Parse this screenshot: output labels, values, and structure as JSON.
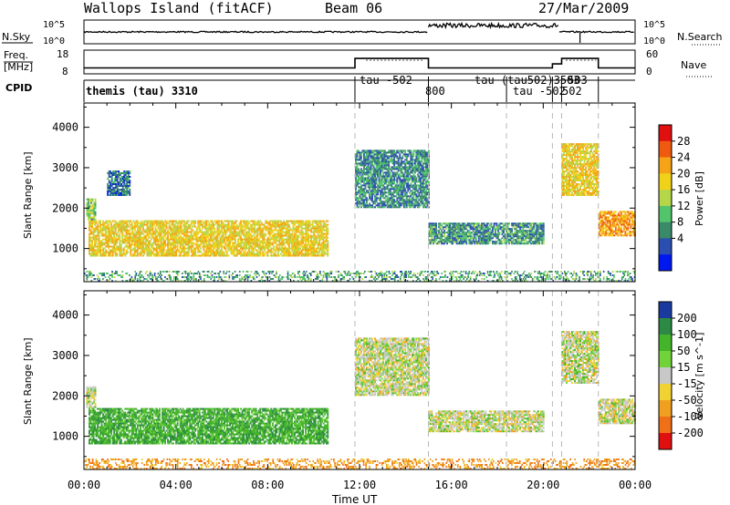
{
  "header": {
    "station": "Wallops Island (fitACF)",
    "beam": "Beam 06",
    "date": "27/Mar/2009"
  },
  "sky_noise_strip": {
    "left_label": "N.Sky",
    "right_label": "N.Search",
    "ticks": [
      "10^5",
      "10^0"
    ],
    "level_segments": [
      {
        "from_hour": 0,
        "to_hour": 15,
        "level": "low"
      },
      {
        "from_hour": 15,
        "to_hour": 20.7,
        "level": "high"
      },
      {
        "from_hour": 20.7,
        "to_hour": 24,
        "level": "low"
      }
    ]
  },
  "freq_strip": {
    "left_label_line1": "Freq.",
    "left_label_line2": "[MHz]",
    "right_label": "Nave",
    "left_ticks": [
      "18",
      "8"
    ],
    "right_ticks": [
      "60",
      "0"
    ],
    "steps": [
      {
        "from_hour": 0,
        "to_hour": 11.8,
        "freq_mhz": 10.5
      },
      {
        "from_hour": 11.8,
        "to_hour": 15.0,
        "freq_mhz": 14.5
      },
      {
        "from_hour": 15.0,
        "to_hour": 20.4,
        "freq_mhz": 10.5
      },
      {
        "from_hour": 20.4,
        "to_hour": 20.8,
        "freq_mhz": 12.2
      },
      {
        "from_hour": 20.8,
        "to_hour": 22.4,
        "freq_mhz": 14.5
      },
      {
        "from_hour": 22.4,
        "to_hour": 24,
        "freq_mhz": 10.5
      }
    ]
  },
  "cpid_strip": {
    "label": "CPID",
    "programs": [
      {
        "hour": 0,
        "label": "themis (tau) 3310"
      },
      {
        "hour": 12.1,
        "label": "tau -502"
      },
      {
        "hour": 15.0,
        "label": "800"
      },
      {
        "hour": 18.4,
        "label": "tau (tau502)3503"
      },
      {
        "hour": 19.9,
        "label": "tau -502"
      },
      {
        "hour": 21.3,
        "label": "503"
      },
      {
        "hour": 21.4,
        "label": "502"
      }
    ],
    "changes_hours": [
      11.8,
      15.0,
      18.4,
      20.4,
      20.8,
      22.4
    ]
  },
  "xaxis": {
    "label": "Time UT",
    "tick_labels": [
      "00:00",
      "04:00",
      "08:00",
      "12:00",
      "16:00",
      "20:00",
      "00:00"
    ]
  },
  "chart_data": [
    {
      "type": "heatmap",
      "quantity": "Power",
      "ylabel": "Slant Range [km]",
      "colorbar_label": "Power [dB]",
      "colorbar_ticks": [
        4,
        8,
        12,
        16,
        20,
        24,
        28
      ],
      "colorbar_colors": [
        "#0018f0",
        "#2a4fb0",
        "#3a8a6a",
        "#53c46b",
        "#b6d64a",
        "#f0d21a",
        "#f6a417",
        "#f05a10",
        "#e01010"
      ],
      "xlim_hours": [
        0,
        24
      ],
      "ylim_km": [
        180,
        4600
      ],
      "y_ticks": [
        1000,
        2000,
        3000,
        4000
      ],
      "dashed_markers_hours": [
        11.8,
        15.0,
        18.4,
        20.4,
        20.8,
        22.4
      ],
      "echo_regions": [
        {
          "start_hour": 0.1,
          "end_hour": 0.5,
          "range_km": [
            1700,
            2200
          ],
          "power_db": 14
        },
        {
          "start_hour": 0.2,
          "end_hour": 10.6,
          "range_km": [
            800,
            1700
          ],
          "power_db": 20
        },
        {
          "start_hour": 1.0,
          "end_hour": 2.0,
          "range_km": [
            2300,
            2900
          ],
          "power_db": 6
        },
        {
          "start_hour": 11.8,
          "end_hour": 15.0,
          "range_km": [
            2000,
            3400
          ],
          "power_db": 8
        },
        {
          "start_hour": 15.0,
          "end_hour": 20.0,
          "range_km": [
            1100,
            1600
          ],
          "power_db": 9
        },
        {
          "start_hour": 20.8,
          "end_hour": 22.4,
          "range_km": [
            2300,
            3600
          ],
          "power_db": 20
        },
        {
          "start_hour": 22.4,
          "end_hour": 24.0,
          "range_km": [
            1300,
            1900
          ],
          "power_db": 24
        },
        {
          "start_hour": 0.0,
          "end_hour": 24.0,
          "range_km": [
            180,
            450
          ],
          "power_db": 10
        }
      ]
    },
    {
      "type": "heatmap",
      "quantity": "Velocity",
      "ylabel": "Slant Range [km]",
      "colorbar_label": "Velocity [m s^-1]",
      "colorbar_ticks": [
        200,
        100,
        50,
        15,
        -15,
        -50,
        -100,
        -200
      ],
      "colorbar_colors": [
        "#1a3aa0",
        "#2c8a44",
        "#44b42a",
        "#72d23a",
        "#c8c8c8",
        "#f0d232",
        "#f0a020",
        "#f07018",
        "#e01010"
      ],
      "xlim_hours": [
        0,
        24
      ],
      "ylim_km": [
        180,
        4600
      ],
      "y_ticks": [
        1000,
        2000,
        3000,
        4000
      ],
      "dashed_markers_hours": [
        11.8,
        15.0,
        18.4,
        20.4,
        20.8,
        22.4
      ],
      "echo_regions": [
        {
          "start_hour": 0.1,
          "end_hour": 0.5,
          "range_km": [
            1700,
            2200
          ],
          "velocity_ms": 0
        },
        {
          "start_hour": 0.2,
          "end_hour": 10.6,
          "range_km": [
            800,
            1700
          ],
          "velocity_ms": 60
        },
        {
          "start_hour": 11.8,
          "end_hour": 15.0,
          "range_km": [
            2000,
            3400
          ],
          "velocity_ms": 0
        },
        {
          "start_hour": 15.0,
          "end_hour": 20.0,
          "range_km": [
            1100,
            1600
          ],
          "velocity_ms": 0
        },
        {
          "start_hour": 20.8,
          "end_hour": 22.4,
          "range_km": [
            2300,
            3600
          ],
          "velocity_ms": 0
        },
        {
          "start_hour": 22.4,
          "end_hour": 24.0,
          "range_km": [
            1300,
            1900
          ],
          "velocity_ms": 0
        },
        {
          "start_hour": 0.0,
          "end_hour": 24.0,
          "range_km": [
            180,
            450
          ],
          "velocity_ms": -60
        }
      ]
    }
  ]
}
